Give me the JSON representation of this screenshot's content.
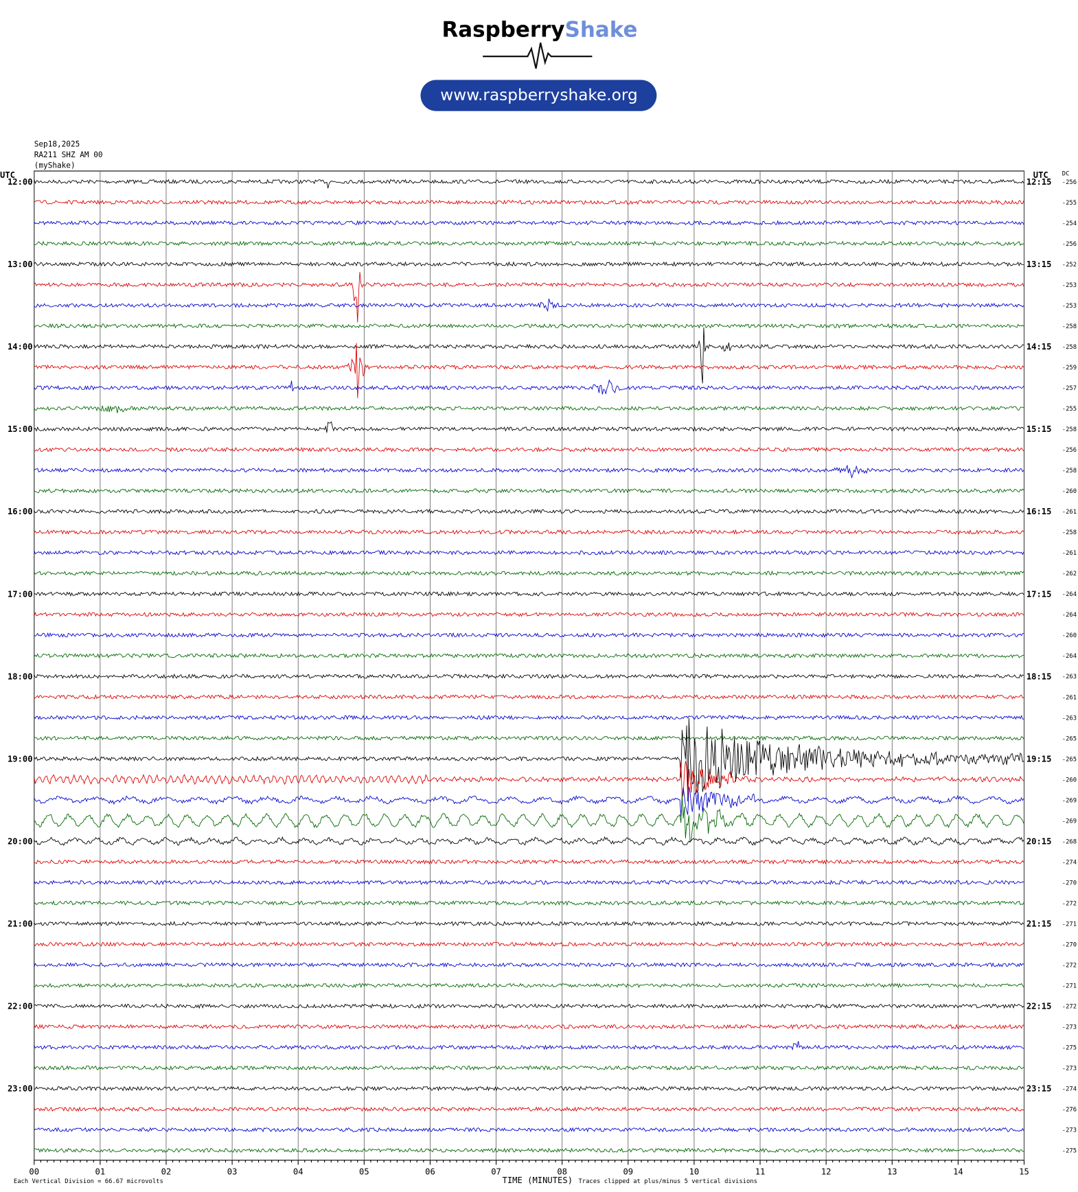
{
  "header": {
    "brand": "Raspberry",
    "brand_accent": "Shake",
    "url": "www.raspberryshake.org"
  },
  "info": {
    "date": "Sep18,2025",
    "station": "RA211 SHZ AM 00",
    "source": "(myShake)"
  },
  "axis": {
    "left_title": "UTC",
    "right_title": "UTC",
    "dc_title": "DC",
    "x_labels": [
      "00",
      "01",
      "02",
      "03",
      "04",
      "05",
      "06",
      "07",
      "08",
      "09",
      "10",
      "11",
      "12",
      "13",
      "14",
      "15"
    ],
    "x_title": "TIME (MINUTES)",
    "left_labels": [
      "12:00",
      "13:00",
      "14:00",
      "15:00",
      "16:00",
      "17:00",
      "18:00",
      "19:00",
      "20:00",
      "21:00",
      "22:00",
      "23:00"
    ],
    "right_labels": [
      "12:15",
      "13:15",
      "14:15",
      "15:15",
      "16:15",
      "17:15",
      "18:15",
      "19:15",
      "20:15",
      "21:15",
      "22:15",
      "23:15"
    ],
    "dc_values": [
      -256,
      -255,
      -254,
      -256,
      -252,
      -253,
      -253,
      -258,
      -258,
      -259,
      -257,
      -255,
      -258,
      -256,
      -258,
      -260,
      -261,
      -258,
      -261,
      -262,
      -264,
      -264,
      -260,
      -264,
      -263,
      -261,
      -263,
      -265,
      -265,
      -260,
      -269,
      -269,
      -268,
      -274,
      -270,
      -272,
      -271,
      -270,
      -272,
      -271,
      -272,
      -273,
      -275,
      -273,
      -274,
      -276,
      -273,
      -275
    ]
  },
  "footer": {
    "scale": "Each Vertical Division =  66.67 microvolts",
    "clip": "Traces clipped at plus/minus 5 vertical divisions"
  }
}
